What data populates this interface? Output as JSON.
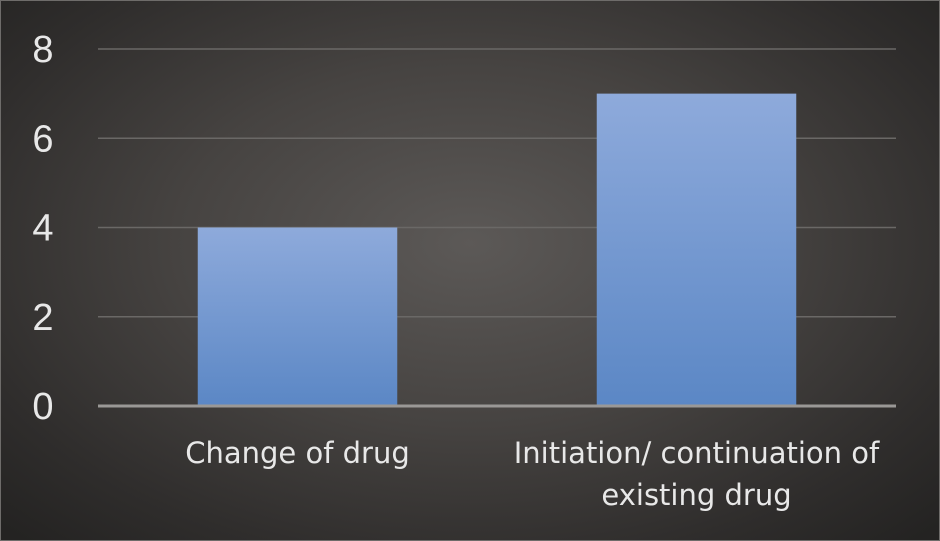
{
  "chart_data": {
    "type": "bar",
    "categories": [
      [
        "Change of drug"
      ],
      [
        "Initiation/ continuation of",
        "existing drug"
      ]
    ],
    "values": [
      4,
      7
    ],
    "ylim": [
      0,
      8
    ],
    "yticks": [
      "0",
      "2",
      "4",
      "6",
      "8"
    ],
    "ytick_values": [
      0,
      2,
      4,
      6,
      8
    ],
    "grid": true,
    "legend": "none",
    "title": "",
    "xlabel": "",
    "ylabel": ""
  },
  "colors": {
    "bar_top": "#8eaadb",
    "bar_bottom": "#5b87c5",
    "gridline": "#6a6866",
    "axis": "#9a9896",
    "text": "#e8e8e8"
  }
}
